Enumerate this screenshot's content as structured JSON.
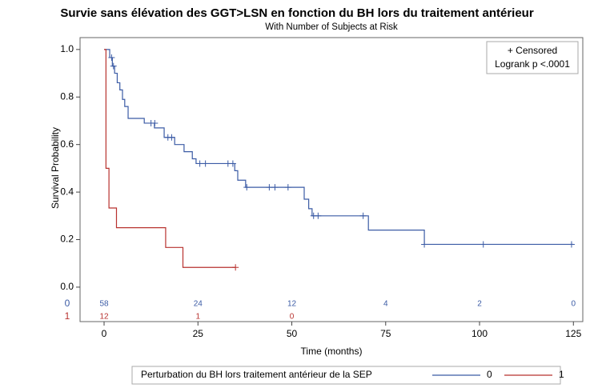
{
  "chart_data": {
    "type": "kaplan-meier",
    "title": "Survie sans élévation des GGT>LSN en fonction du BH lors du traitement antérieur",
    "subtitle": "With Number of Subjects at Risk",
    "xlabel": "Time (months)",
    "ylabel": "Survival Probability",
    "censored_label": "+ Censored",
    "logrank_label": "Logrank p <.0001",
    "legend_title": "Perturbation du BH lors traitement antérieur de la SEP",
    "xlim": [
      -6.4,
      127.5
    ],
    "ylim": [
      -0.145,
      1.05
    ],
    "xticks": [
      0,
      25,
      50,
      75,
      100,
      125
    ],
    "yticks": [
      {
        "value": 0,
        "label": "0.0"
      },
      0.2,
      0.4,
      0.6,
      0.8,
      {
        "value": 1,
        "label": "1.0"
      }
    ],
    "series": [
      {
        "name": "0",
        "color": "#3b5ba5",
        "x": [
          0,
          1.5,
          2.2,
          2.8,
          3.5,
          4.2,
          4.9,
          5.5,
          6.4,
          10.7,
          13.4,
          16,
          18.8,
          21.3,
          23.5,
          24.5,
          34.8,
          35.6,
          37.7,
          53.3,
          54.5,
          55.4,
          70.4,
          85.3,
          125
        ],
        "values": [
          1,
          0.966,
          0.93,
          0.9,
          0.86,
          0.83,
          0.79,
          0.76,
          0.71,
          0.69,
          0.67,
          0.63,
          0.6,
          0.57,
          0.54,
          0.52,
          0.49,
          0.45,
          0.42,
          0.37,
          0.33,
          0.3,
          0.24,
          0.18,
          0.18
        ],
        "censor_x": [
          2,
          2.5,
          12.5,
          13.5,
          17,
          18,
          25.5,
          27,
          33,
          34.3,
          38,
          44,
          45.5,
          49,
          55.8,
          57,
          69,
          85.3,
          101,
          124.5
        ],
        "censor_values": [
          0.966,
          0.93,
          0.69,
          0.69,
          0.63,
          0.63,
          0.52,
          0.52,
          0.52,
          0.52,
          0.42,
          0.42,
          0.42,
          0.42,
          0.3,
          0.3,
          0.3,
          0.18,
          0.18,
          0.18
        ],
        "at_risk": [
          58,
          24,
          12,
          4,
          2,
          0
        ]
      },
      {
        "name": "1",
        "color": "#b8322f",
        "x": [
          0,
          0.5,
          1.3,
          3.3,
          16.4,
          21,
          35
        ],
        "values": [
          1,
          0.5,
          0.333,
          0.25,
          0.167,
          0.083,
          0.083
        ],
        "censor_x": [
          35
        ],
        "censor_values": [
          0.083
        ],
        "at_risk": [
          12,
          1,
          0,
          null,
          null,
          null
        ]
      }
    ]
  }
}
